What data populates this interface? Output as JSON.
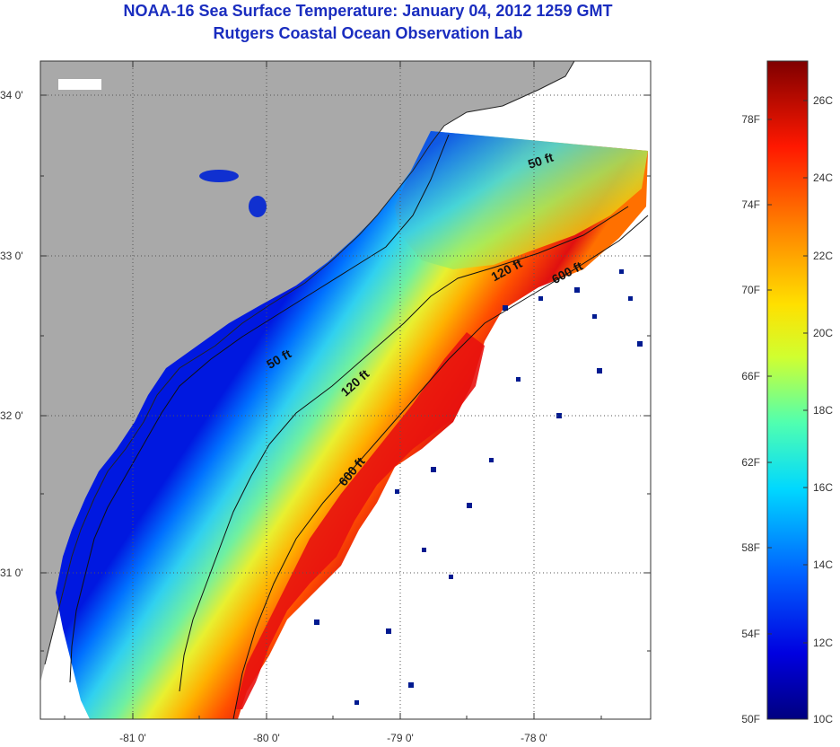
{
  "title": "NOAA-16 Sea Surface Temperature:  January 04, 2012 1259 GMT",
  "subtitle": "Rutgers Coastal Ocean Observation Lab",
  "map": {
    "lat_labels": [
      "34 0'",
      "33 0'",
      "32 0'",
      "31 0'"
    ],
    "lon_labels": [
      "-81 0'",
      "-80 0'",
      "-79 0'",
      "-78 0'"
    ],
    "contours": {
      "c50_top": "50 ft",
      "c50_mid": "50 ft",
      "c120_top": "120 ft",
      "c120_mid": "120 ft",
      "c600_top": "600 ft",
      "c600_mid": "600 ft"
    }
  },
  "colorbar": {
    "fahrenheit": [
      "78F",
      "74F",
      "70F",
      "66F",
      "62F",
      "58F",
      "54F",
      "50F"
    ],
    "celsius": [
      "26C",
      "24C",
      "22C",
      "20C",
      "18C",
      "16C",
      "14C",
      "12C",
      "10C"
    ]
  }
}
